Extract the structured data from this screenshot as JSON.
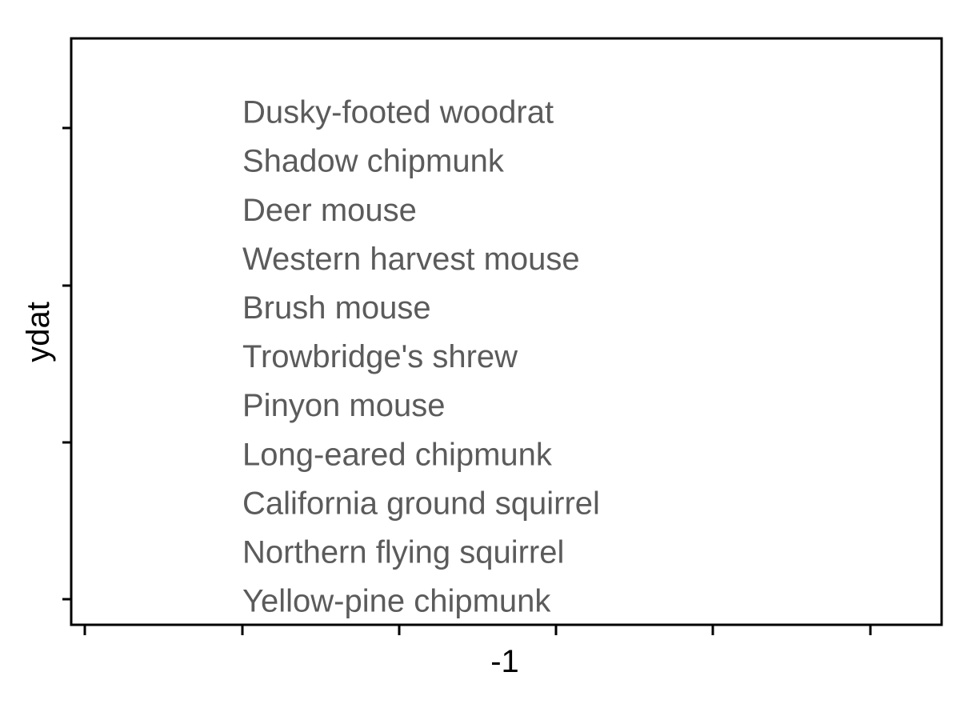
{
  "chart_data": {
    "type": "scatter",
    "title": "",
    "xlabel": "-1",
    "ylabel": "ydat",
    "x_tick_count": 6,
    "y_tick_count": 4,
    "grid": false,
    "legend": "none",
    "colors": {
      "text": "#5b5b5b",
      "axis": "#000000",
      "background": "#ffffff"
    },
    "labels": [
      "Dusky-footed woodrat",
      "Shadow chipmunk",
      "Deer mouse",
      "Western harvest mouse",
      "Brush mouse",
      "Trowbridge's shrew",
      "Pinyon mouse",
      "Long-eared chipmunk",
      "California ground squirrel",
      "Northern flying squirrel",
      "Yellow-pine chipmunk"
    ]
  }
}
